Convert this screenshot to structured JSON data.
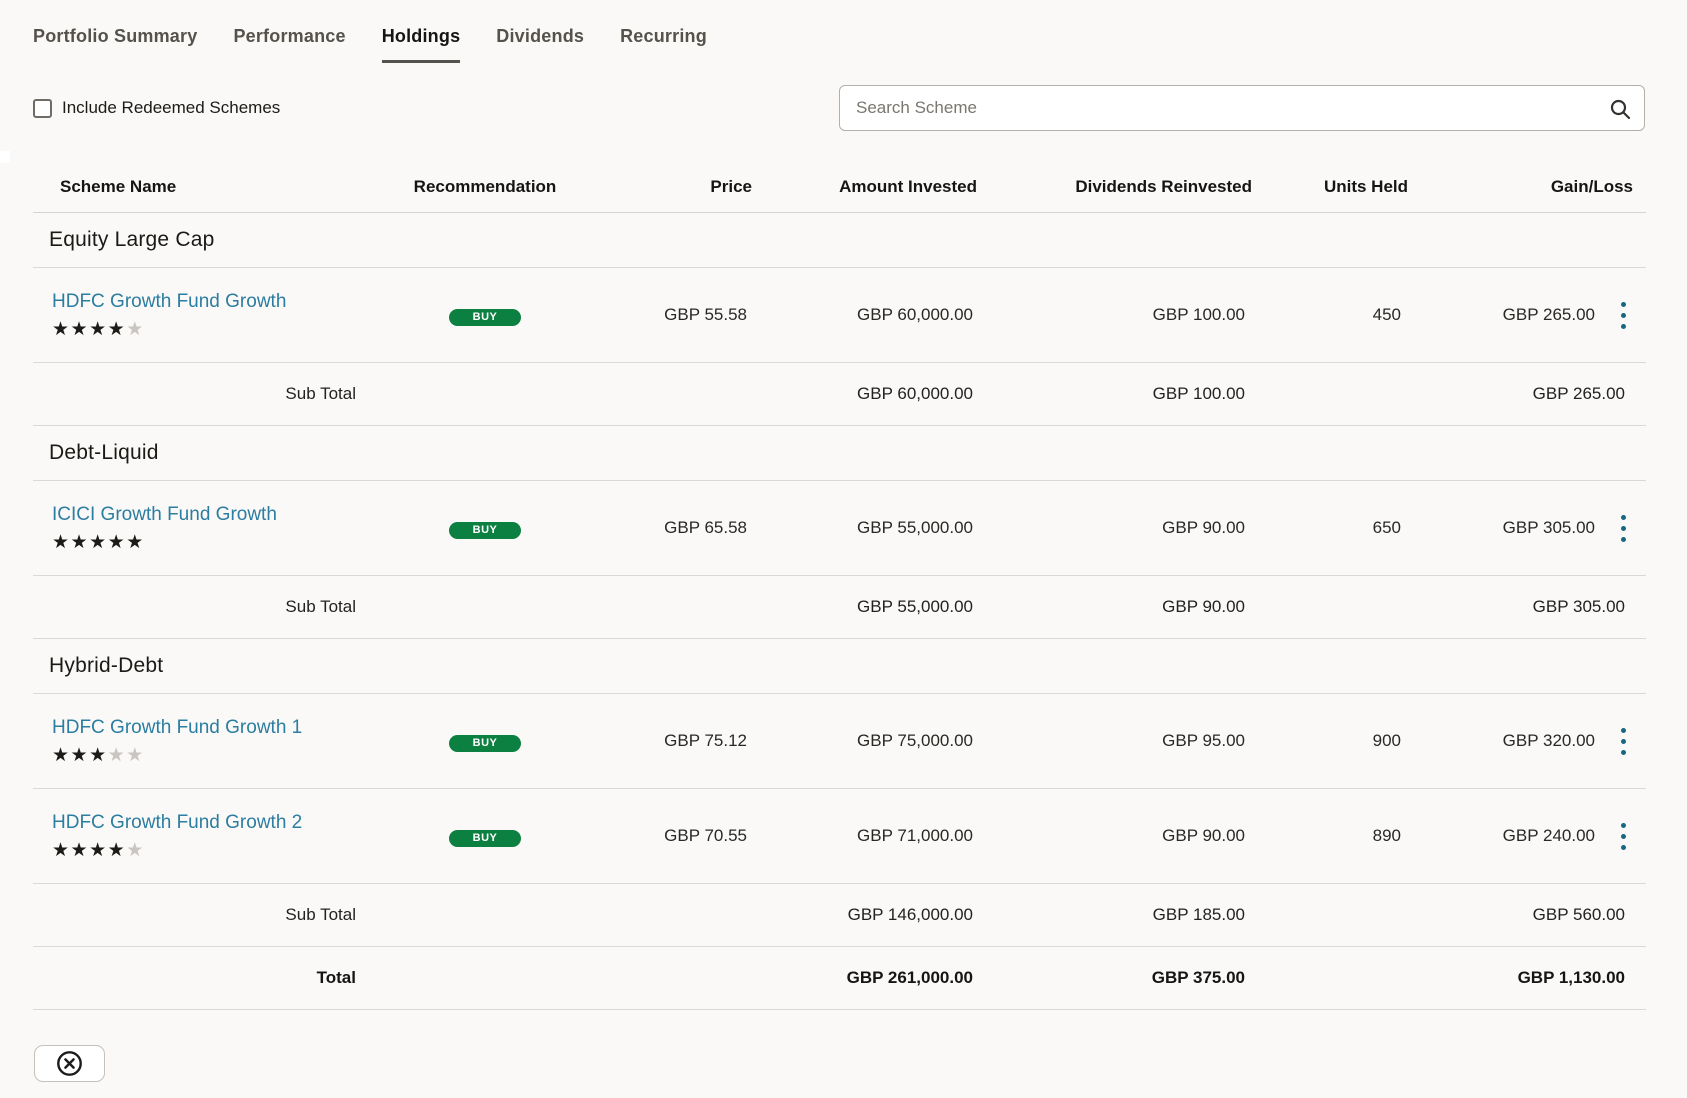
{
  "tabs": [
    {
      "label": "Portfolio Summary",
      "active": false
    },
    {
      "label": "Performance",
      "active": false
    },
    {
      "label": "Holdings",
      "active": true
    },
    {
      "label": "Dividends",
      "active": false
    },
    {
      "label": "Recurring",
      "active": false
    }
  ],
  "filters": {
    "checkbox_label": "Include Redeemed Schemes",
    "checkbox_checked": false,
    "search_placeholder": "Search Scheme"
  },
  "table": {
    "columns": {
      "scheme": "Scheme Name",
      "recommendation": "Recommendation",
      "price": "Price",
      "amount_invested": "Amount Invested",
      "dividends_reinvested": "Dividends Reinvested",
      "units_held": "Units Held",
      "gain_loss": "Gain/Loss"
    },
    "groups": [
      {
        "name": "Equity Large Cap",
        "rows": [
          {
            "scheme": "HDFC Growth Fund Growth",
            "rating": 4,
            "rating_max": 5,
            "recommendation": "BUY",
            "price": "GBP 55.58",
            "amount_invested": "GBP 60,000.00",
            "dividends_reinvested": "GBP 100.00",
            "units_held": "450",
            "gain_loss": "GBP 265.00"
          }
        ],
        "sub_total": {
          "label": "Sub Total",
          "amount_invested": "GBP 60,000.00",
          "dividends_reinvested": "GBP 100.00",
          "gain_loss": "GBP 265.00"
        }
      },
      {
        "name": "Debt-Liquid",
        "rows": [
          {
            "scheme": "ICICI Growth Fund Growth",
            "rating": 5,
            "rating_max": 5,
            "recommendation": "BUY",
            "price": "GBP 65.58",
            "amount_invested": "GBP 55,000.00",
            "dividends_reinvested": "GBP 90.00",
            "units_held": "650",
            "gain_loss": "GBP 305.00"
          }
        ],
        "sub_total": {
          "label": "Sub Total",
          "amount_invested": "GBP 55,000.00",
          "dividends_reinvested": "GBP 90.00",
          "gain_loss": "GBP 305.00"
        }
      },
      {
        "name": "Hybrid-Debt",
        "rows": [
          {
            "scheme": "HDFC Growth Fund Growth 1",
            "rating": 3,
            "rating_max": 5,
            "recommendation": "BUY",
            "price": "GBP 75.12",
            "amount_invested": "GBP 75,000.00",
            "dividends_reinvested": "GBP 95.00",
            "units_held": "900",
            "gain_loss": "GBP 320.00"
          },
          {
            "scheme": "HDFC Growth Fund Growth 2",
            "rating": 4,
            "rating_max": 5,
            "recommendation": "BUY",
            "price": "GBP 70.55",
            "amount_invested": "GBP 71,000.00",
            "dividends_reinvested": "GBP 90.00",
            "units_held": "890",
            "gain_loss": "GBP 240.00"
          }
        ],
        "sub_total": {
          "label": "Sub Total",
          "amount_invested": "GBP 146,000.00",
          "dividends_reinvested": "GBP 185.00",
          "gain_loss": "GBP 560.00"
        }
      }
    ],
    "total": {
      "label": "Total",
      "amount_invested": "GBP 261,000.00",
      "dividends_reinvested": "GBP 375.00",
      "gain_loss": "GBP 1,130.00"
    }
  },
  "icons": {
    "search": "search-icon",
    "kebab": "kebab-menu-icon",
    "close": "close-circle-icon"
  },
  "colors": {
    "link": "#2b7da1",
    "badge_buy": "#0c8040",
    "kebab_dots": "#166882",
    "star_filled": "#1d1b18",
    "star_empty": "#c9c5c0",
    "tab_active_underline": "#55534e",
    "background": "#faf9f7"
  }
}
